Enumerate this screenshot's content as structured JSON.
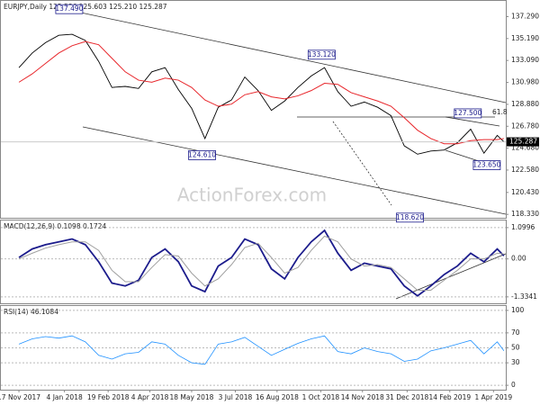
{
  "chart_data": [
    {
      "type": "line",
      "title": "EURJPY,Daily  125.586 125.603 125.210 125.287",
      "watermark": "ActionForex.com",
      "x": [
        "2017-11-17",
        "2017-12-01",
        "2017-12-15",
        "2017-12-29",
        "2018-01-12",
        "2018-01-26",
        "2018-02-09",
        "2018-02-23",
        "2018-03-09",
        "2018-03-23",
        "2018-04-06",
        "2018-04-20",
        "2018-05-04",
        "2018-05-18",
        "2018-06-01",
        "2018-06-15",
        "2018-06-29",
        "2018-07-13",
        "2018-07-27",
        "2018-08-10",
        "2018-08-24",
        "2018-09-07",
        "2018-09-21",
        "2018-10-05",
        "2018-10-19",
        "2018-11-02",
        "2018-11-16",
        "2018-11-30",
        "2018-12-14",
        "2018-12-28",
        "2019-01-11",
        "2019-01-25",
        "2019-02-08",
        "2019-02-22",
        "2019-03-08",
        "2019-03-22",
        "2019-04-05",
        "2019-04-12"
      ],
      "series": [
        {
          "color": "#000000",
          "values": [
            132.4,
            133.8,
            134.8,
            135.5,
            135.6,
            135.0,
            133.0,
            130.5,
            130.6,
            130.4,
            132.0,
            132.4,
            130.3,
            128.5,
            125.6,
            128.6,
            129.3,
            131.5,
            130.2,
            128.3,
            129.2,
            130.5,
            131.6,
            132.4,
            130.1,
            128.7,
            129.1,
            128.6,
            127.8,
            124.9,
            124.1,
            124.4,
            124.5,
            125.2,
            126.5,
            124.2,
            125.9,
            125.287
          ]
        },
        {
          "color": "#e8262b",
          "values": [
            131.0,
            131.8,
            132.8,
            133.8,
            134.5,
            134.9,
            134.6,
            133.3,
            132.0,
            131.2,
            131.0,
            131.4,
            131.2,
            130.5,
            129.3,
            128.7,
            128.9,
            129.8,
            130.1,
            129.6,
            129.4,
            129.7,
            130.2,
            130.9,
            130.8,
            130.0,
            129.6,
            129.2,
            128.7,
            127.6,
            126.4,
            125.6,
            125.1,
            125.1,
            125.4,
            125.5,
            125.5,
            125.6
          ]
        }
      ],
      "annotations": [
        {
          "label": "137.490",
          "x": "2018-01-09",
          "value": 137.49
        },
        {
          "label": "133.120",
          "x": "2018-10-02",
          "value": 133.12
        },
        {
          "label": "124.610",
          "x": "2018-05-29",
          "value": 124.61
        },
        {
          "label": "118.620",
          "x": "2019-01-03",
          "value": 118.62
        },
        {
          "label": "127.500",
          "x": "2019-03-05",
          "value": 127.5
        },
        {
          "label": "123.650",
          "x": "2019-03-25",
          "value": 123.65
        }
      ],
      "fib_label": "61.8",
      "last_price": 125.287,
      "xlim": [
        "2017-10-29",
        "2019-04-14"
      ],
      "ylim": [
        118.0,
        138.8
      ],
      "yticks": [
        {
          "value": 137.29,
          "label": "137.290"
        },
        {
          "value": 135.19,
          "label": "135.190"
        },
        {
          "value": 133.09,
          "label": "133.090"
        },
        {
          "value": 130.98,
          "label": "130.980"
        },
        {
          "value": 128.88,
          "label": "128.880"
        },
        {
          "value": 126.78,
          "label": "126.780"
        },
        {
          "value": 124.68,
          "label": "124.680"
        },
        {
          "value": 122.58,
          "label": "122.580"
        },
        {
          "value": 120.43,
          "label": "120.430"
        },
        {
          "value": 118.33,
          "label": "118.330"
        }
      ]
    },
    {
      "type": "line",
      "title": "MACD(12,26,9) 0.1098 0.1724",
      "x": [
        "2017-11-17",
        "2017-12-01",
        "2017-12-15",
        "2017-12-29",
        "2018-01-12",
        "2018-01-26",
        "2018-02-09",
        "2018-02-23",
        "2018-03-09",
        "2018-03-23",
        "2018-04-06",
        "2018-04-20",
        "2018-05-04",
        "2018-05-18",
        "2018-06-01",
        "2018-06-15",
        "2018-06-29",
        "2018-07-13",
        "2018-07-27",
        "2018-08-10",
        "2018-08-24",
        "2018-09-07",
        "2018-09-21",
        "2018-10-05",
        "2018-10-19",
        "2018-11-02",
        "2018-11-16",
        "2018-11-30",
        "2018-12-14",
        "2018-12-28",
        "2019-01-11",
        "2019-01-25",
        "2019-02-08",
        "2019-02-22",
        "2019-03-08",
        "2019-03-22",
        "2019-04-05",
        "2019-04-12"
      ],
      "series": [
        {
          "color": "#1c1c8c",
          "values": [
            0.05,
            0.35,
            0.5,
            0.6,
            0.7,
            0.5,
            -0.1,
            -0.85,
            -0.95,
            -0.75,
            0.05,
            0.35,
            -0.1,
            -0.95,
            -1.15,
            -0.25,
            0.05,
            0.7,
            0.5,
            -0.35,
            -0.7,
            0.05,
            0.6,
            1.0,
            0.2,
            -0.4,
            -0.15,
            -0.25,
            -0.35,
            -0.95,
            -1.3,
            -0.95,
            -0.55,
            -0.25,
            0.2,
            -0.1,
            0.35,
            0.1098
          ]
        },
        {
          "color": "#a0a0a0",
          "values": [
            0.0,
            0.2,
            0.38,
            0.5,
            0.6,
            0.6,
            0.3,
            -0.4,
            -0.8,
            -0.8,
            -0.3,
            0.15,
            0.1,
            -0.5,
            -0.95,
            -0.7,
            -0.2,
            0.4,
            0.55,
            0.05,
            -0.5,
            -0.3,
            0.3,
            0.8,
            0.6,
            0.0,
            -0.25,
            -0.2,
            -0.3,
            -0.7,
            -1.1,
            -1.1,
            -0.75,
            -0.4,
            0.0,
            0.0,
            0.2,
            0.1724
          ]
        }
      ],
      "xlim": [
        "2017-10-29",
        "2019-04-14"
      ],
      "ylim": [
        -1.56,
        1.35
      ],
      "yticks": [
        1.0996,
        {
          "value": 0,
          "label": "0.00"
        },
        -1.3341
      ]
    },
    {
      "type": "line",
      "title": "RSI(14) 46.1084",
      "x": [
        "2017-11-17",
        "2017-12-01",
        "2017-12-15",
        "2017-12-29",
        "2018-01-12",
        "2018-01-26",
        "2018-02-09",
        "2018-02-23",
        "2018-03-09",
        "2018-03-23",
        "2018-04-06",
        "2018-04-20",
        "2018-05-04",
        "2018-05-18",
        "2018-06-01",
        "2018-06-15",
        "2018-06-29",
        "2018-07-13",
        "2018-07-27",
        "2018-08-10",
        "2018-08-24",
        "2018-09-07",
        "2018-09-21",
        "2018-10-05",
        "2018-10-19",
        "2018-11-02",
        "2018-11-16",
        "2018-11-30",
        "2018-12-14",
        "2018-12-28",
        "2019-01-11",
        "2019-01-25",
        "2019-02-08",
        "2019-02-22",
        "2019-03-08",
        "2019-03-22",
        "2019-04-05",
        "2019-04-12"
      ],
      "series": [
        {
          "color": "#1e90ff",
          "values": [
            55,
            62,
            65,
            63,
            66,
            58,
            40,
            35,
            42,
            44,
            58,
            55,
            40,
            30,
            28,
            55,
            58,
            64,
            52,
            40,
            48,
            56,
            62,
            66,
            45,
            42,
            50,
            45,
            42,
            32,
            35,
            46,
            50,
            55,
            60,
            42,
            58,
            46.1084
          ]
        }
      ],
      "xlim": [
        "2017-10-29",
        "2019-04-14"
      ],
      "ylim": [
        -5.9,
        105.9
      ],
      "yticks": [
        100,
        70,
        50,
        30,
        0
      ],
      "xticks": [
        {
          "value": "2017-11-17",
          "label": "17 Nov 2017"
        },
        {
          "value": "2018-01-04",
          "label": "4 Jan 2018"
        },
        {
          "value": "2018-02-19",
          "label": "19 Feb 2018"
        },
        {
          "value": "2018-04-04",
          "label": "4 Apr 2018"
        },
        {
          "value": "2018-05-18",
          "label": "18 May 2018"
        },
        {
          "value": "2018-07-03",
          "label": "3 Jul 2018"
        },
        {
          "value": "2018-08-16",
          "label": "16 Aug 2018"
        },
        {
          "value": "2018-10-01",
          "label": "1 Oct 2018"
        },
        {
          "value": "2018-11-14",
          "label": "14 Nov 2018"
        },
        {
          "value": "2018-12-31",
          "label": "31 Dec 2018"
        },
        {
          "value": "2019-02-14",
          "label": "14 Feb 2019"
        },
        {
          "value": "2019-04-01",
          "label": "1 Apr 2019"
        }
      ]
    }
  ]
}
